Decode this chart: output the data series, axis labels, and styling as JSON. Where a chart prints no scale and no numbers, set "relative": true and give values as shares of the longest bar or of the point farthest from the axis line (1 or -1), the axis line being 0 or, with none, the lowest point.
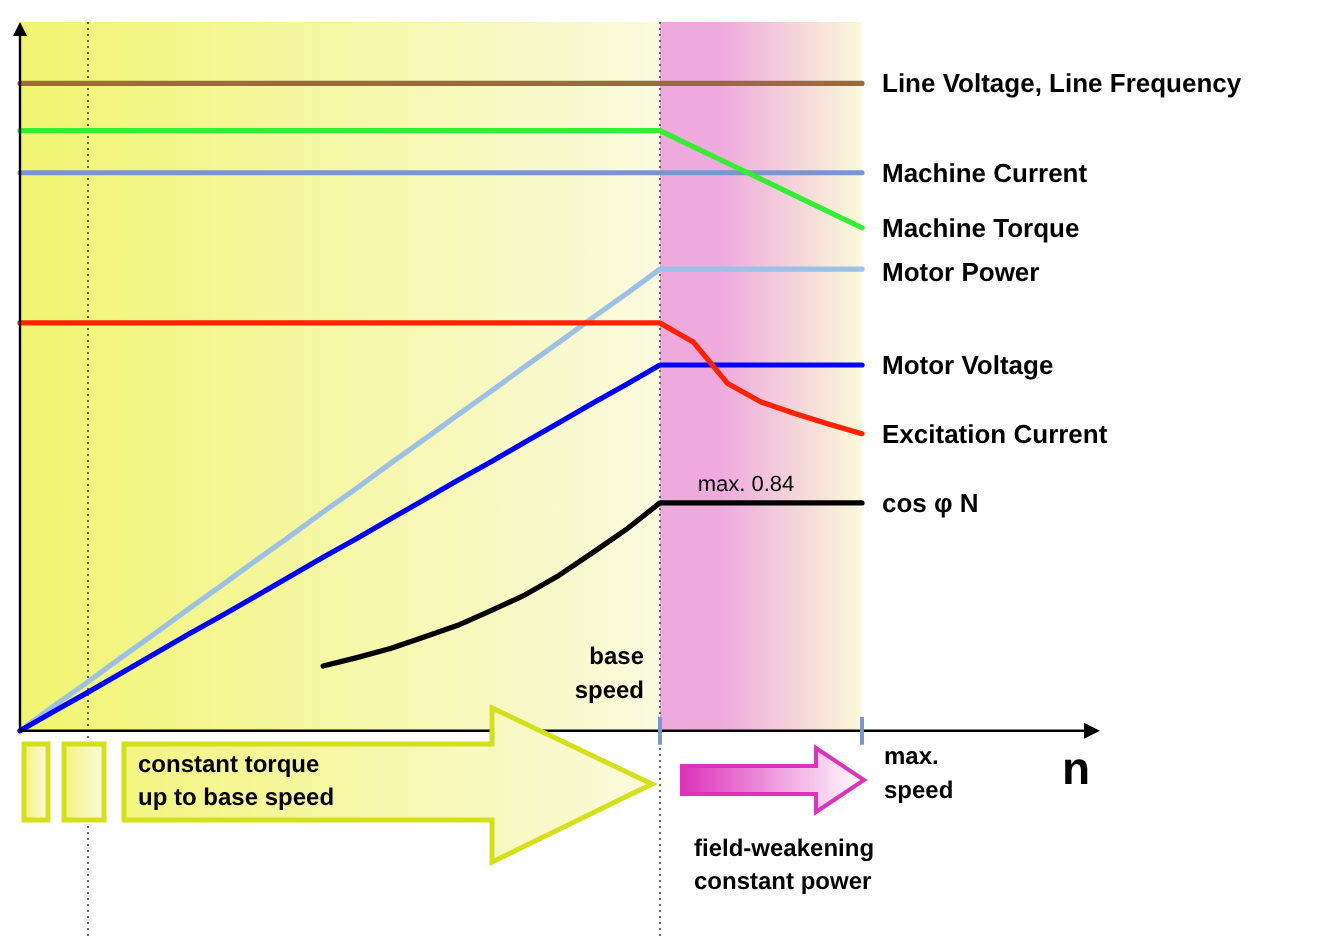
{
  "chart_data": {
    "type": "line",
    "relative": true,
    "xlabel": "n",
    "grid": false,
    "legend": false,
    "categories": [
      null,
      null,
      null,
      null,
      null,
      null,
      null,
      null,
      null,
      null,
      null,
      null,
      null,
      null,
      null,
      null,
      null,
      null,
      null,
      null,
      null,
      null,
      null,
      null,
      null,
      null
    ],
    "series": [
      {
        "name": "Line Voltage, Line Frequency",
        "color": "#9c6b3c",
        "values": [
          1,
          1,
          1,
          1,
          1,
          1,
          1,
          1,
          1,
          1,
          1,
          1,
          1,
          1,
          1,
          1,
          1,
          1,
          1,
          1,
          1,
          1,
          1,
          1,
          1,
          1
        ]
      },
      {
        "name": "Machine Current",
        "color": "#7b96cf",
        "values": [
          0.862,
          0.862,
          0.862,
          0.862,
          0.862,
          0.862,
          0.862,
          0.862,
          0.862,
          0.862,
          0.862,
          0.862,
          0.862,
          0.862,
          0.862,
          0.862,
          0.862,
          0.862,
          0.862,
          0.862,
          0.862,
          0.862,
          0.862,
          0.862,
          0.862,
          0.862
        ]
      },
      {
        "name": "Machine Torque",
        "color": "#33ee33",
        "values": [
          0.927,
          0.927,
          0.927,
          0.927,
          0.927,
          0.927,
          0.927,
          0.927,
          0.927,
          0.927,
          0.927,
          0.927,
          0.927,
          0.927,
          0.927,
          0.927,
          0.927,
          0.927,
          0.927,
          0.927,
          0.902,
          0.877,
          0.852,
          0.827,
          0.802,
          0.777
        ]
      },
      {
        "name": "Motor Power",
        "color": "#9cc0e6",
        "values": [
          0,
          0.038,
          0.075,
          0.113,
          0.15,
          0.188,
          0.225,
          0.263,
          0.3,
          0.338,
          0.375,
          0.413,
          0.45,
          0.488,
          0.525,
          0.563,
          0.6,
          0.638,
          0.675,
          0.713,
          0.713,
          0.713,
          0.713,
          0.713,
          0.713,
          0.713
        ]
      },
      {
        "name": "Motor Voltage",
        "color": "#0000ff",
        "values": [
          0,
          0.03,
          0.059,
          0.089,
          0.119,
          0.149,
          0.178,
          0.208,
          0.238,
          0.268,
          0.297,
          0.327,
          0.357,
          0.387,
          0.416,
          0.446,
          0.476,
          0.506,
          0.535,
          0.565,
          0.565,
          0.565,
          0.565,
          0.565,
          0.565,
          0.565
        ]
      },
      {
        "name": "Excitation Current",
        "color": "#ff2200",
        "values": [
          0.63,
          0.63,
          0.63,
          0.63,
          0.63,
          0.63,
          0.63,
          0.63,
          0.63,
          0.63,
          0.63,
          0.63,
          0.63,
          0.63,
          0.63,
          0.63,
          0.63,
          0.63,
          0.63,
          0.63,
          0.6,
          0.537,
          0.508,
          0.49,
          0.474,
          0.459
        ]
      },
      {
        "name": "cos φ N",
        "color": "#000000",
        "values": [
          null,
          null,
          null,
          null,
          null,
          null,
          null,
          null,
          null,
          0.1,
          0.113,
          0.127,
          0.145,
          0.163,
          0.186,
          0.21,
          0.24,
          0.275,
          0.311,
          0.352,
          0.352,
          0.352,
          0.352,
          0.352,
          0.352,
          0.352
        ]
      }
    ],
    "annotations": [
      "constant torque\nup to base speed",
      "field-weakening\nconstant power",
      "base speed",
      "max. speed",
      {
        "text": "max. 0.84",
        "y": 0.352
      }
    ]
  }
}
